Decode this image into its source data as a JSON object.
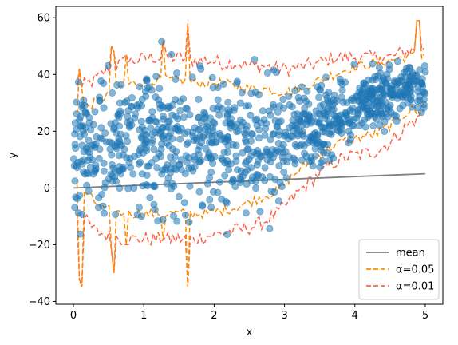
{
  "chart_data": {
    "type": "scatter",
    "xlabel": "x",
    "ylabel": "y",
    "xlim": [
      -0.25,
      5.25
    ],
    "ylim": [
      -41,
      64
    ],
    "xticks": [
      0,
      1,
      2,
      3,
      4,
      5
    ],
    "yticks": [
      -40,
      -20,
      0,
      20,
      40,
      60
    ],
    "grid": false,
    "legend_position": "bottom-right",
    "colors": {
      "points": "#1f77b4",
      "mean": "#808080",
      "band_05": "#ff8c00",
      "band_01": "#ff6347"
    },
    "mean_line": {
      "x": [
        0,
        5
      ],
      "y": [
        0,
        5
      ]
    },
    "band_05": {
      "x": [
        0.05,
        0.3,
        0.5,
        0.7,
        0.9,
        1.1,
        1.3,
        1.5,
        1.7,
        1.9,
        2.1,
        2.3,
        2.5,
        2.7,
        2.9,
        3.1,
        3.3,
        3.5,
        3.7,
        3.9,
        4.1,
        4.3,
        4.5,
        4.7,
        4.9,
        5.0
      ],
      "upper": [
        27,
        30,
        33,
        36,
        37,
        38,
        38,
        38,
        37,
        37,
        37,
        36,
        35,
        35,
        34,
        34,
        36,
        38,
        40,
        42,
        43,
        44,
        45,
        46,
        47,
        47
      ],
      "lower": [
        2,
        -5,
        -8,
        -9,
        -9,
        -9,
        -9,
        -9,
        -9,
        -9,
        -8,
        -7,
        -5,
        -3,
        -1,
        4,
        8,
        12,
        15,
        17,
        18,
        19,
        22,
        26,
        29,
        30
      ]
    },
    "band_01": {
      "x": [
        0.05,
        0.3,
        0.5,
        0.7,
        0.9,
        1.1,
        1.3,
        1.5,
        1.7,
        1.9,
        2.1,
        2.3,
        2.5,
        2.7,
        2.9,
        3.1,
        3.3,
        3.5,
        3.7,
        3.9,
        4.1,
        4.3,
        4.5,
        4.7,
        4.9,
        5.0
      ],
      "upper": [
        35,
        38,
        42,
        44,
        45,
        46,
        46,
        46,
        45,
        45,
        44,
        44,
        43,
        43,
        42,
        42,
        43,
        44,
        46,
        46,
        46,
        46,
        46,
        48,
        49,
        50
      ],
      "lower": [
        -8,
        -15,
        -17,
        -18,
        -18,
        -18,
        -18,
        -18,
        -18,
        -17,
        -16,
        -15,
        -14,
        -12,
        -9,
        -4,
        1,
        5,
        9,
        11,
        12,
        13,
        16,
        21,
        25,
        27
      ]
    },
    "band_spikes": [
      {
        "x": 0.07,
        "upper": 42,
        "lower": -32
      },
      {
        "x": 0.12,
        "upper": 35,
        "lower": -35
      },
      {
        "x": 0.55,
        "upper": 50,
        "lower": -22
      },
      {
        "x": 0.58,
        "upper": 48,
        "lower": -30
      },
      {
        "x": 0.75,
        "upper": 47,
        "lower": -20
      },
      {
        "x": 1.28,
        "upper": 52,
        "lower": -18
      },
      {
        "x": 1.62,
        "upper": 58,
        "lower": -35
      },
      {
        "x": 4.9,
        "upper": 59,
        "lower": 26
      }
    ],
    "series": [
      {
        "name": "mean"
      },
      {
        "name": "α=0.05"
      },
      {
        "name": "α=0.01"
      }
    ]
  }
}
